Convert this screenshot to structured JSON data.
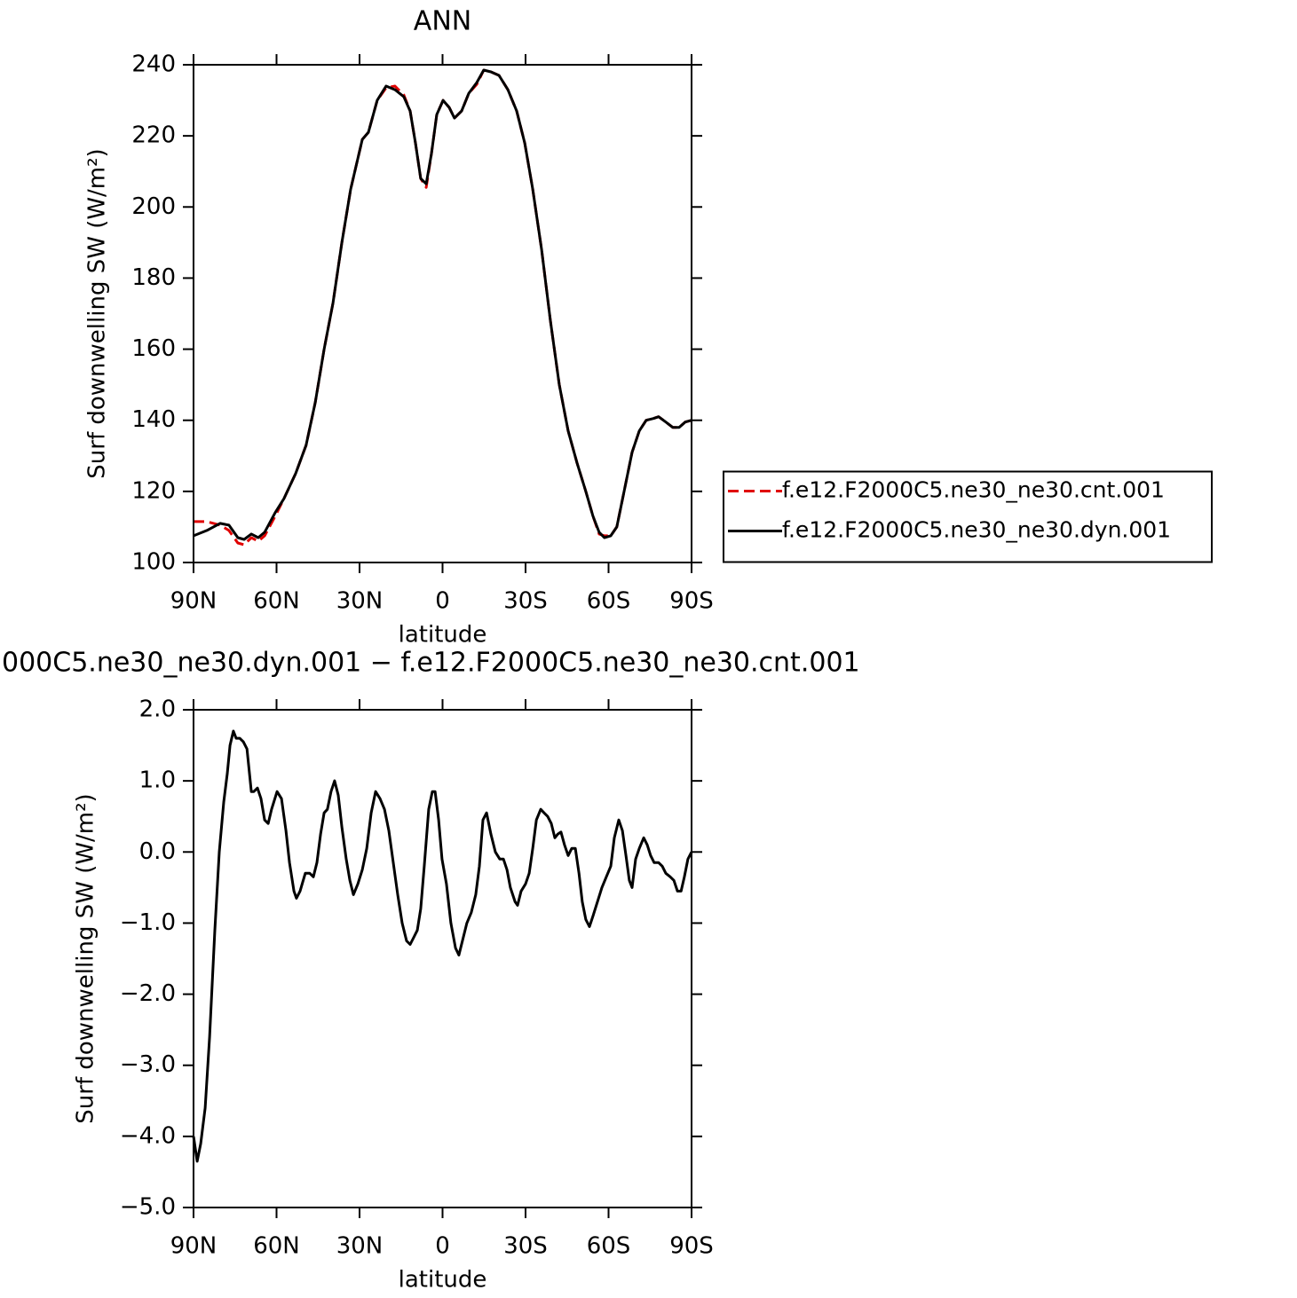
{
  "chart_data": [
    {
      "type": "line",
      "title": "ANN",
      "xlabel": "latitude",
      "ylabel": "Surf downwelling SW (W/m²)",
      "x": [
        90,
        85.2,
        80.4,
        77.2,
        74.0,
        71.7,
        69.1,
        66.6,
        64.3,
        60.5,
        57.3,
        53.1,
        49.3,
        46.0,
        42.8,
        39.6,
        36.4,
        33.2,
        29.0,
        26.8,
        23.6,
        20.4,
        17.2,
        14.0,
        11.7,
        9.8,
        7.9,
        5.9,
        4.0,
        2.1,
        -0.2,
        -2.4,
        -4.3,
        -6.9,
        -9.5,
        -12.4,
        -14.9,
        -17.5,
        -20.4,
        -23.6,
        -26.8,
        -29.7,
        -32.6,
        -35.8,
        -39.0,
        -42.2,
        -45.4,
        -48.6,
        -51.8,
        -54.4,
        -56.6,
        -58.5,
        -60.8,
        -63.0,
        -65.6,
        -68.5,
        -71.1,
        -73.6,
        -76.2,
        -78.1,
        -80.7,
        -83.2,
        -85.5,
        -87.7,
        -90
      ],
      "series": [
        {
          "name": "f.e12.F2000C5.ne30_ne30.cnt.001",
          "color": "#e00000",
          "style": "dashed",
          "values": [
            111.5,
            111.5,
            110.5,
            109,
            105.5,
            105,
            107,
            106,
            107.5,
            113,
            118,
            125,
            133,
            145,
            160,
            173,
            190,
            205,
            219,
            221,
            230,
            233.5,
            234,
            231.5,
            227,
            218,
            208,
            205.5,
            215,
            226,
            230,
            228,
            225,
            227,
            232,
            234.5,
            238.5,
            238,
            237,
            233,
            227,
            218,
            205,
            188,
            168,
            150,
            137,
            128,
            120,
            113,
            108,
            107.5,
            107.5,
            110,
            120,
            131,
            137,
            140,
            140.5,
            141,
            139.5,
            138,
            138,
            139.5,
            140
          ]
        },
        {
          "name": "f.e12.F2000C5.ne30_ne30.dyn.001",
          "color": "#000000",
          "style": "solid",
          "values": [
            107.5,
            109,
            111,
            110.5,
            107,
            106.5,
            108,
            107,
            108.5,
            114,
            118,
            125,
            133,
            145,
            160,
            173,
            190,
            205,
            219,
            221,
            230,
            234,
            233,
            231,
            227,
            218,
            208,
            206.5,
            215,
            226,
            230,
            228,
            225,
            227,
            232,
            235,
            238.5,
            238,
            237,
            233,
            227,
            218,
            205,
            188,
            168,
            150,
            137,
            128,
            120,
            113,
            108.5,
            107,
            107.5,
            110,
            120,
            131,
            137,
            140,
            140.5,
            141,
            139.5,
            138,
            138,
            139.5,
            140
          ]
        }
      ],
      "xlim": [
        90,
        -90
      ],
      "xticks": [
        {
          "value": 90,
          "label": "90N"
        },
        {
          "value": 60,
          "label": "60N"
        },
        {
          "value": 30,
          "label": "30N"
        },
        0,
        {
          "value": -30,
          "label": "30S"
        },
        {
          "value": -60,
          "label": "60S"
        },
        {
          "value": -90,
          "label": "90S"
        }
      ],
      "ylim": [
        100,
        240
      ],
      "yticks": [
        100,
        120,
        140,
        160,
        180,
        200,
        220,
        240
      ],
      "legend": "right"
    },
    {
      "type": "line",
      "title": "000C5.ne30_ne30.dyn.001 − f.e12.F2000C5.ne30_ne30.cnt.001",
      "xlabel": "latitude",
      "ylabel": "Surf downwelling SW (W/m²)",
      "x": [
        90,
        88.7,
        87.4,
        85.8,
        84.2,
        82.3,
        80.7,
        79.1,
        77.8,
        76.8,
        75.6,
        74.6,
        73.3,
        72.0,
        70.7,
        69.1,
        68.2,
        66.9,
        65.6,
        64.3,
        63.0,
        61.8,
        59.8,
        58.2,
        56.6,
        55.3,
        53.7,
        52.8,
        51.5,
        49.6,
        48.0,
        46.7,
        45.4,
        44.1,
        42.8,
        41.6,
        40.3,
        39.0,
        37.7,
        36.4,
        34.8,
        33.5,
        32.2,
        30.6,
        29.0,
        27.4,
        25.8,
        24.2,
        22.6,
        21.0,
        19.4,
        17.8,
        16.2,
        14.6,
        13.0,
        11.7,
        10.4,
        9.1,
        7.9,
        6.6,
        5.0,
        3.7,
        2.7,
        1.4,
        0.2,
        -1.4,
        -3.0,
        -4.7,
        -5.9,
        -7.2,
        -8.8,
        -10.4,
        -12.0,
        -13.3,
        -14.6,
        -15.9,
        -17.5,
        -19.1,
        -20.7,
        -22.0,
        -23.3,
        -24.5,
        -26.2,
        -27.1,
        -28.4,
        -30.0,
        -31.3,
        -32.6,
        -33.9,
        -35.5,
        -36.7,
        -38.0,
        -39.3,
        -40.6,
        -41.6,
        -42.8,
        -44.1,
        -45.4,
        -46.7,
        -48.0,
        -49.3,
        -50.5,
        -51.8,
        -53.1,
        -54.4,
        -56.0,
        -57.6,
        -59.2,
        -60.8,
        -62.1,
        -63.7,
        -65.0,
        -66.3,
        -67.5,
        -68.5,
        -69.8,
        -71.1,
        -72.7,
        -74.0,
        -75.2,
        -76.5,
        -78.1,
        -79.4,
        -80.7,
        -82.3,
        -83.6,
        -84.9,
        -86.2,
        -87.4,
        -88.7,
        -90.0
      ],
      "series": [
        {
          "color": "#000000",
          "style": "solid",
          "values": [
            -4.0,
            -4.35,
            -4.1,
            -3.6,
            -2.6,
            -1.1,
            0,
            0.7,
            1.1,
            1.5,
            1.7,
            1.6,
            1.6,
            1.55,
            1.45,
            0.85,
            0.85,
            0.9,
            0.75,
            0.45,
            0.4,
            0.6,
            0.85,
            0.75,
            0.3,
            -0.15,
            -0.55,
            -0.65,
            -0.55,
            -0.3,
            -0.3,
            -0.35,
            -0.15,
            0.25,
            0.55,
            0.6,
            0.85,
            1.0,
            0.8,
            0.35,
            -0.1,
            -0.4,
            -0.6,
            -0.45,
            -0.25,
            0.05,
            0.55,
            0.85,
            0.75,
            0.6,
            0.3,
            -0.15,
            -0.6,
            -1.0,
            -1.25,
            -1.3,
            -1.2,
            -1.1,
            -0.8,
            -0.2,
            0.6,
            0.85,
            0.85,
            0.45,
            -0.1,
            -0.45,
            -1.0,
            -1.35,
            -1.45,
            -1.25,
            -1.0,
            -0.85,
            -0.6,
            -0.2,
            0.45,
            0.55,
            0.25,
            0,
            -0.1,
            -0.1,
            -0.25,
            -0.5,
            -0.7,
            -0.75,
            -0.55,
            -0.45,
            -0.3,
            0.05,
            0.45,
            0.6,
            0.55,
            0.5,
            0.4,
            0.2,
            0.25,
            0.28,
            0.1,
            -0.05,
            0.05,
            0.05,
            -0.3,
            -0.7,
            -0.95,
            -1.05,
            -0.9,
            -0.7,
            -0.5,
            -0.35,
            -0.2,
            0.2,
            0.45,
            0.3,
            -0.05,
            -0.4,
            -0.5,
            -0.1,
            0.05,
            0.2,
            0.1,
            -0.05,
            -0.15,
            -0.15,
            -0.2,
            -0.3,
            -0.35,
            -0.4,
            -0.55,
            -0.55,
            -0.35,
            -0.1,
            0.0
          ]
        }
      ],
      "xlim": [
        90,
        -90
      ],
      "xticks": [
        {
          "value": 90,
          "label": "90N"
        },
        {
          "value": 60,
          "label": "60N"
        },
        {
          "value": 30,
          "label": "30N"
        },
        0,
        {
          "value": -30,
          "label": "30S"
        },
        {
          "value": -60,
          "label": "60S"
        },
        {
          "value": -90,
          "label": "90S"
        }
      ],
      "ylim": [
        -5,
        2
      ],
      "yticks": [
        {
          "value": -5,
          "label": "−5.0"
        },
        {
          "value": -4,
          "label": "−4.0"
        },
        {
          "value": -3,
          "label": "−3.0"
        },
        {
          "value": -2,
          "label": "−2.0"
        },
        {
          "value": -1,
          "label": "−1.0"
        },
        {
          "value": 0,
          "label": "0.0"
        },
        {
          "value": 1,
          "label": "1.0"
        },
        {
          "value": 2,
          "label": "2.0"
        }
      ]
    }
  ]
}
